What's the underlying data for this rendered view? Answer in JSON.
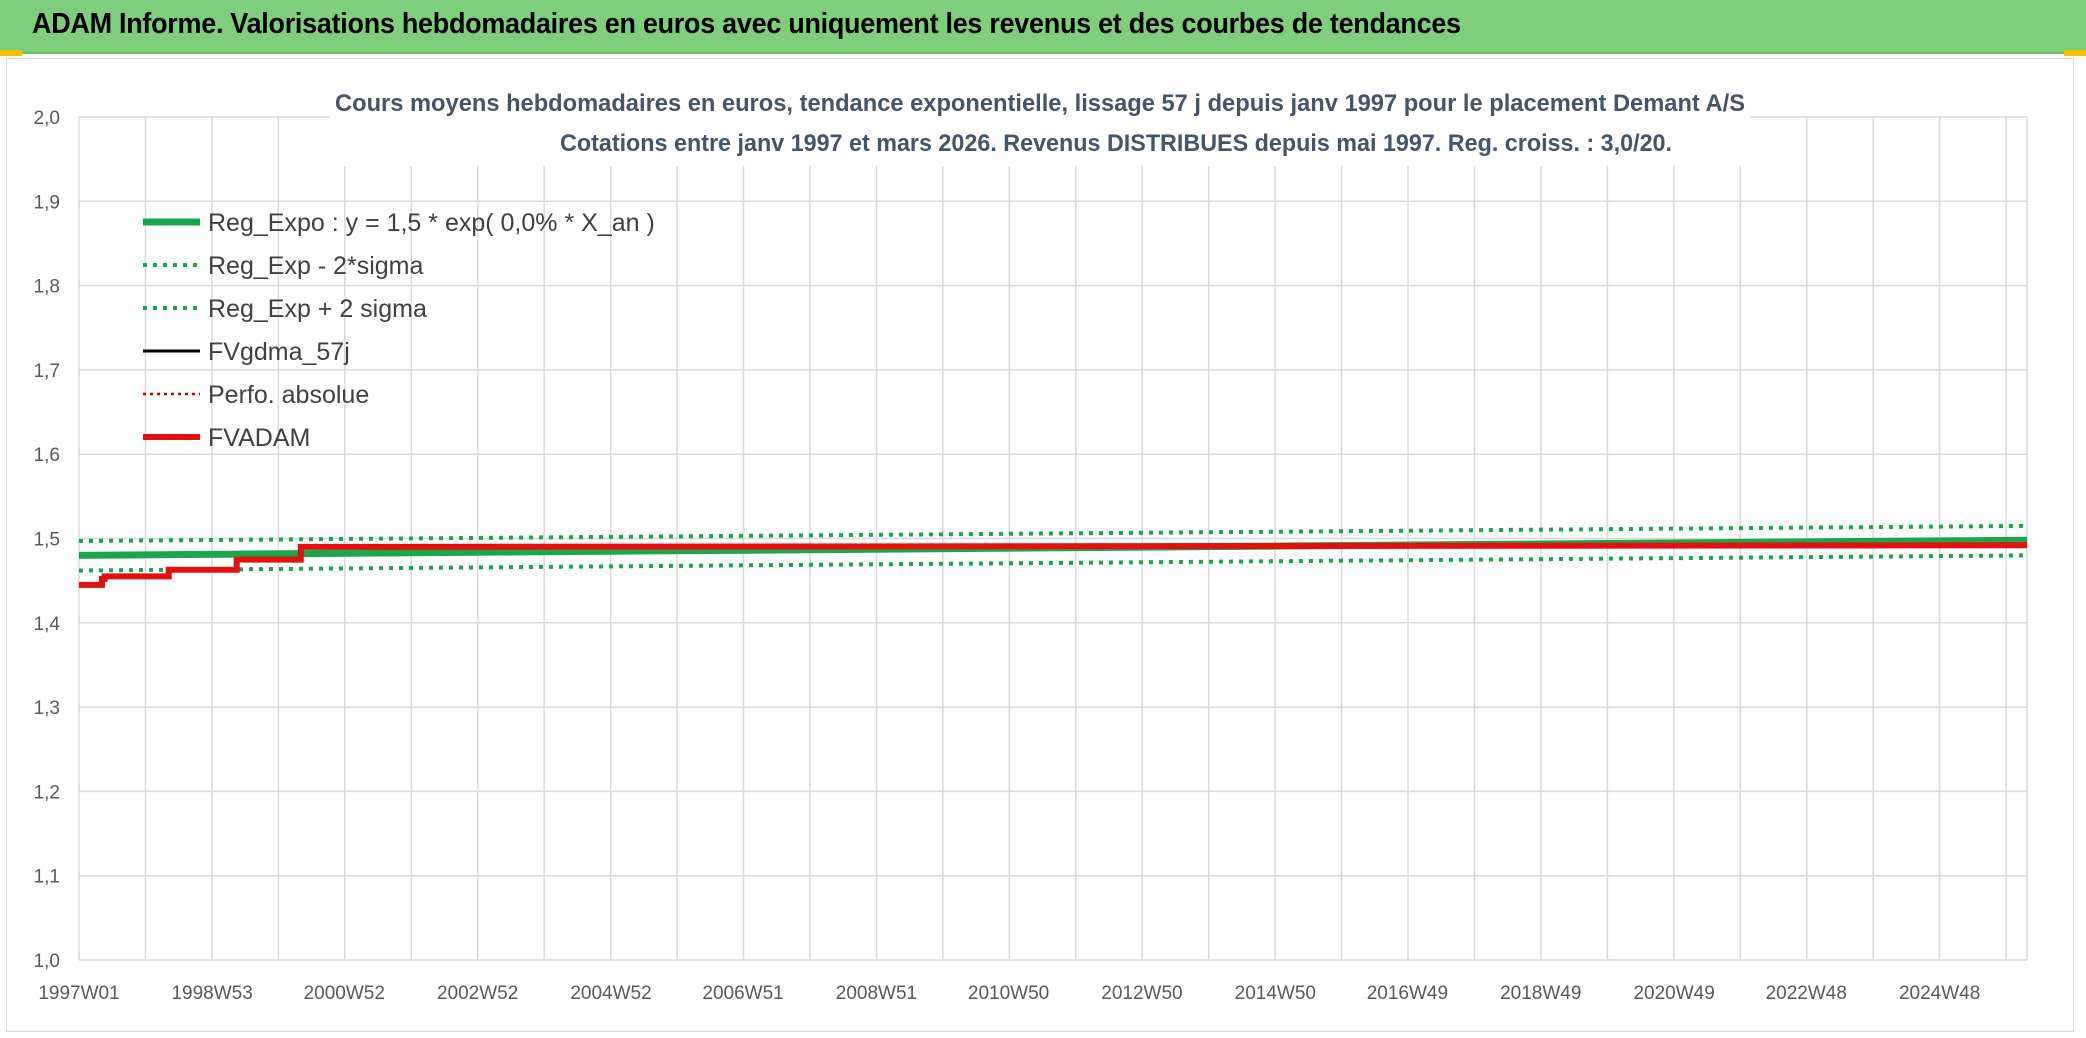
{
  "banner": {
    "title": "ADAM Informe. Valorisations hebdomadaires en euros avec uniquement les revenus et des courbes de tendances"
  },
  "colors": {
    "banner_bg": "#7fce7b",
    "reg_expo": "#1aa64a",
    "sigma": "#1aa64a",
    "fvgdma": "#000000",
    "perfo": "#cc0000",
    "fvadam": "#e31010",
    "grid": "#d9d9d9"
  },
  "chart_data": {
    "type": "line",
    "title_line1": "Cours moyens hebdomadaires en euros, tendance exponentielle, lissage 57 j depuis janv 1997 pour le placement Demant A/S",
    "title_line2": "Cotations entre janv 1997 et mars 2026. Revenus DISTRIBUES depuis mai 1997. Reg. croiss. : 3,0/20.",
    "ylim": [
      1.0,
      2.0
    ],
    "y_ticks": [
      "1,0",
      "1,1",
      "1,2",
      "1,3",
      "1,4",
      "1,5",
      "1,6",
      "1,7",
      "1,8",
      "1,9",
      "2,0"
    ],
    "x_ticks": [
      "1997W01",
      "1998W53",
      "2000W52",
      "2002W52",
      "2004W52",
      "2006W51",
      "2008W51",
      "2010W50",
      "2012W50",
      "2014W50",
      "2016W49",
      "2018W49",
      "2020W49",
      "2022W48",
      "2024W48"
    ],
    "xlim": [
      "1997W01",
      "2026W12"
    ],
    "grid": true,
    "legend_position": "top-left",
    "series": [
      {
        "name": "Reg_Expo : y = 1,5 * exp( 0,0% *  X_an )",
        "style": "solid-thick",
        "color": "#1aa64a",
        "points": [
          [
            "1997W01",
            1.48
          ],
          [
            "2026W12",
            1.498
          ]
        ]
      },
      {
        "name": "Reg_Exp - 2*sigma",
        "style": "dotted",
        "color": "#1aa64a",
        "points": [
          [
            "1997W01",
            1.462
          ],
          [
            "2026W12",
            1.48
          ]
        ]
      },
      {
        "name": "Reg_Exp + 2 sigma",
        "style": "dotted",
        "color": "#1aa64a",
        "points": [
          [
            "1997W01",
            1.497
          ],
          [
            "2026W12",
            1.515
          ]
        ]
      },
      {
        "name": "FVgdma_57j",
        "style": "solid",
        "color": "#000000",
        "points": []
      },
      {
        "name": "Perfo. absolue",
        "style": "dotted-thin",
        "color": "#cc0000",
        "points": []
      },
      {
        "name": "FVADAM",
        "style": "step-thick",
        "color": "#e31010",
        "points": [
          [
            "1997W01",
            1.445
          ],
          [
            "1997W19",
            1.445
          ],
          [
            "1997W19",
            1.452
          ],
          [
            "1997W21",
            1.452
          ],
          [
            "1997W21",
            1.455
          ],
          [
            "1998W19",
            1.455
          ],
          [
            "1998W19",
            1.463
          ],
          [
            "1999W20",
            1.463
          ],
          [
            "1999W20",
            1.475
          ],
          [
            "2000W18",
            1.475
          ],
          [
            "2000W18",
            1.49
          ],
          [
            "2026W12",
            1.492
          ]
        ]
      }
    ]
  }
}
